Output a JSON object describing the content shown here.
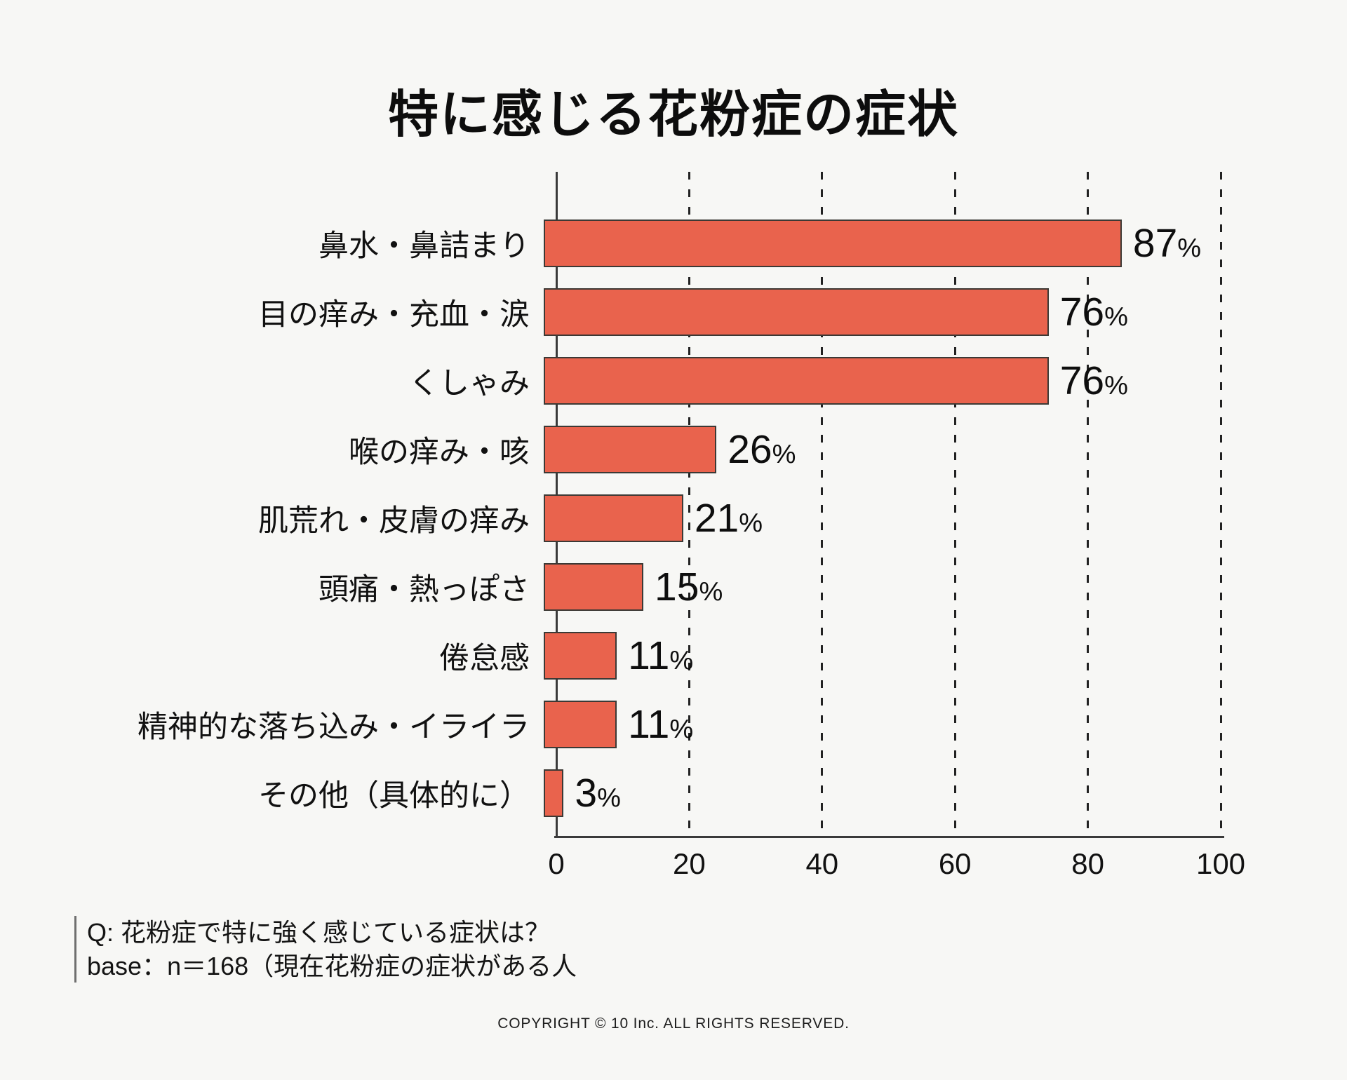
{
  "title": "特に感じる花粉症の症状",
  "chart_data": {
    "type": "bar",
    "orientation": "horizontal",
    "title": "特に感じる花粉症の症状",
    "categories": [
      "鼻水・鼻詰まり",
      "目の痒み・充血・涙",
      "くしゃみ",
      "喉の痒み・咳",
      "肌荒れ・皮膚の痒み",
      "頭痛・熱っぽさ",
      "倦怠感",
      "精神的な落ち込み・イライラ",
      "その他（具体的に）"
    ],
    "values": [
      87,
      76,
      76,
      26,
      21,
      15,
      11,
      11,
      3
    ],
    "value_suffix": "%",
    "xlim": [
      0,
      100
    ],
    "x_ticks": [
      0,
      20,
      40,
      60,
      80,
      100
    ],
    "grid": "dashed-vertical",
    "legend": "none",
    "colors": {
      "bar_fill": "#E9634D",
      "bar_border": "#3C3935",
      "gridline": "#222222",
      "axis": "#3A3A3A",
      "background": "#F7F7F5",
      "text": "#111111"
    }
  },
  "footnote": {
    "question": "Q: 花粉症で特に強く感じている症状は？",
    "base": "base：n＝168（現在花粉症の症状がある人"
  },
  "copyright": "COPYRIGHT © 10 Inc. ALL RIGHTS RESERVED."
}
